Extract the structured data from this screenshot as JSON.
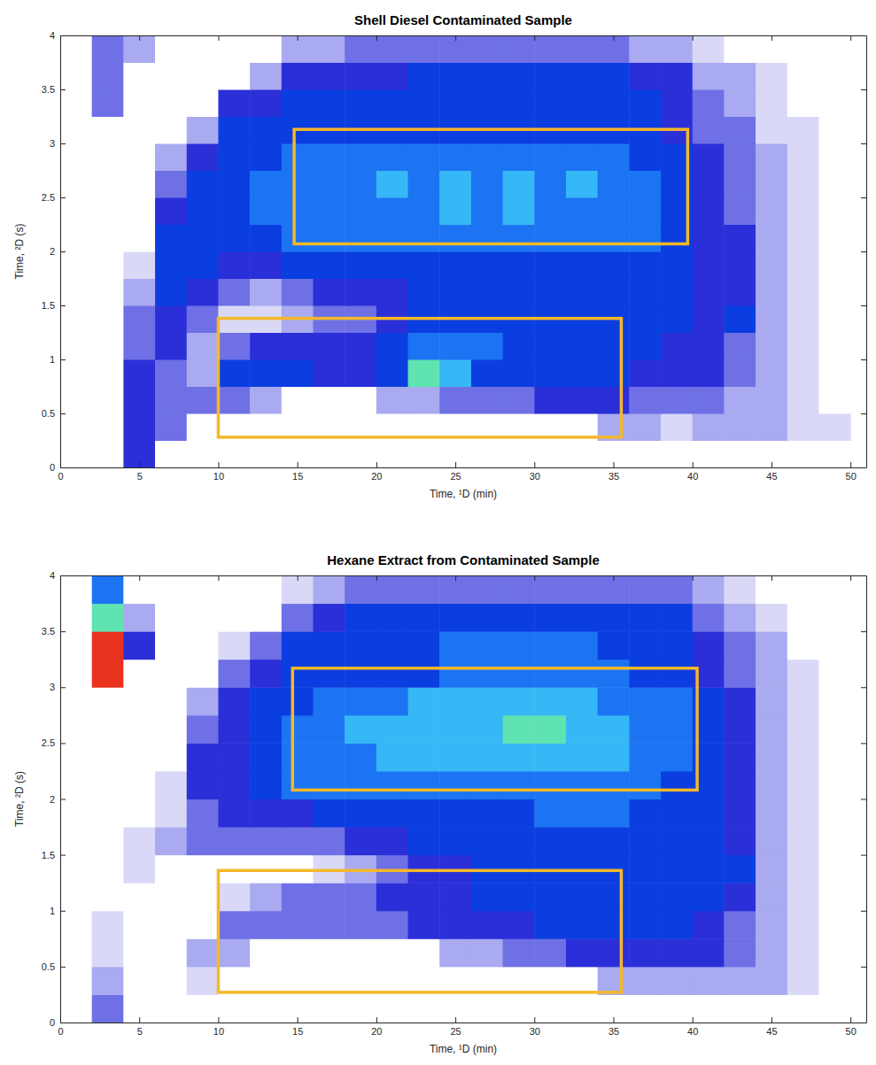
{
  "chart_data": [
    {
      "type": "heatmap",
      "title": "Shell Diesel Contaminated Sample",
      "x_label": "Time, ¹D (min)",
      "y_label": "Time, ²D (s)",
      "xlim": [
        0,
        51
      ],
      "ylim": [
        0,
        4
      ],
      "xticks": [
        0,
        5,
        10,
        15,
        20,
        25,
        30,
        35,
        40,
        45,
        50
      ],
      "yticks": [
        0,
        0.5,
        1,
        1.5,
        2,
        2.5,
        3,
        3.5,
        4
      ],
      "x_edges": [
        0,
        2,
        4,
        6,
        8,
        10,
        12,
        14,
        16,
        18,
        20,
        22,
        24,
        26,
        28,
        30,
        32,
        34,
        36,
        38,
        40,
        42,
        44,
        46,
        48,
        50
      ],
      "y_edges": [
        0,
        0.25,
        0.5,
        0.75,
        1,
        1.25,
        1.5,
        1.75,
        2,
        2.25,
        2.5,
        2.75,
        3,
        3.25,
        3.5,
        3.75,
        4
      ],
      "z": [
        [
          0,
          0,
          4,
          0,
          0,
          0,
          0,
          0,
          0,
          0,
          0,
          0,
          0,
          0,
          0,
          0,
          0,
          0,
          0,
          0,
          0,
          0,
          0,
          0,
          0
        ],
        [
          0,
          0,
          4,
          3,
          0,
          0,
          0,
          0,
          0,
          0,
          0,
          0,
          0,
          0,
          0,
          0,
          0,
          2,
          2,
          1,
          2,
          2,
          2,
          1,
          1
        ],
        [
          0,
          0,
          4,
          3,
          3,
          3,
          2,
          0,
          0,
          0,
          2,
          2,
          3,
          3,
          3,
          4,
          4,
          4,
          3,
          3,
          3,
          2,
          2,
          1,
          0
        ],
        [
          0,
          0,
          4,
          3,
          2,
          5,
          5,
          5,
          4,
          4,
          5,
          8,
          7,
          5,
          5,
          5,
          5,
          5,
          4,
          4,
          4,
          3,
          2,
          1,
          0
        ],
        [
          0,
          0,
          3,
          4,
          2,
          3,
          4,
          4,
          4,
          4,
          5,
          6,
          6,
          6,
          5,
          5,
          5,
          5,
          5,
          4,
          4,
          3,
          2,
          1,
          0
        ],
        [
          0,
          0,
          3,
          4,
          3,
          1,
          1,
          2,
          3,
          3,
          4,
          5,
          5,
          5,
          5,
          5,
          5,
          5,
          5,
          5,
          4,
          5,
          2,
          1,
          0
        ],
        [
          0,
          0,
          2,
          5,
          4,
          3,
          2,
          3,
          4,
          4,
          4,
          5,
          5,
          5,
          5,
          5,
          5,
          5,
          5,
          5,
          4,
          4,
          2,
          1,
          0
        ],
        [
          0,
          0,
          1,
          5,
          5,
          4,
          4,
          5,
          5,
          5,
          5,
          5,
          5,
          5,
          5,
          5,
          5,
          5,
          5,
          5,
          4,
          4,
          2,
          1,
          0
        ],
        [
          0,
          0,
          0,
          5,
          5,
          5,
          5,
          6,
          6,
          6,
          6,
          6,
          6,
          6,
          6,
          6,
          6,
          6,
          6,
          5,
          4,
          4,
          2,
          1,
          0
        ],
        [
          0,
          0,
          0,
          4,
          5,
          5,
          6,
          6,
          6,
          6,
          6,
          6,
          7,
          6,
          7,
          6,
          6,
          6,
          6,
          5,
          4,
          3,
          2,
          1,
          0
        ],
        [
          0,
          0,
          0,
          3,
          5,
          5,
          6,
          6,
          6,
          6,
          7,
          6,
          7,
          6,
          7,
          6,
          7,
          6,
          6,
          5,
          4,
          3,
          2,
          1,
          0
        ],
        [
          0,
          0,
          0,
          2,
          4,
          5,
          5,
          6,
          6,
          6,
          6,
          6,
          6,
          6,
          6,
          6,
          6,
          6,
          5,
          5,
          4,
          3,
          2,
          1,
          0
        ],
        [
          0,
          0,
          0,
          0,
          2,
          5,
          5,
          5,
          5,
          5,
          5,
          5,
          5,
          5,
          5,
          5,
          5,
          5,
          5,
          4,
          3,
          3,
          1,
          1,
          0
        ],
        [
          0,
          3,
          0,
          0,
          0,
          4,
          4,
          5,
          5,
          5,
          5,
          5,
          5,
          5,
          5,
          5,
          5,
          5,
          5,
          4,
          3,
          2,
          1,
          0,
          0
        ],
        [
          0,
          3,
          0,
          0,
          0,
          0,
          2,
          4,
          4,
          4,
          4,
          5,
          5,
          5,
          5,
          5,
          5,
          5,
          4,
          4,
          2,
          2,
          1,
          0,
          0
        ],
        [
          0,
          3,
          2,
          0,
          0,
          0,
          0,
          2,
          2,
          3,
          3,
          3,
          3,
          3,
          3,
          3,
          3,
          3,
          2,
          2,
          1,
          0,
          0,
          0,
          0
        ]
      ],
      "shapes": [
        {
          "type": "rect",
          "x": [
            14.8,
            39.7
          ],
          "y": [
            2.07,
            3.13
          ],
          "color": "#f5b829"
        },
        {
          "type": "rect",
          "x": [
            10,
            35.5
          ],
          "y": [
            0.28,
            1.38
          ],
          "color": "#f5b829"
        }
      ]
    },
    {
      "type": "heatmap",
      "title": "Hexane Extract from Contaminated Sample",
      "x_label": "Time, ¹D (min)",
      "y_label": "Time, ²D (s)",
      "xlim": [
        0,
        51
      ],
      "ylim": [
        0,
        4
      ],
      "xticks": [
        0,
        5,
        10,
        15,
        20,
        25,
        30,
        35,
        40,
        45,
        50
      ],
      "yticks": [
        0,
        0.5,
        1,
        1.5,
        2,
        2.5,
        3,
        3.5,
        4
      ],
      "x_edges": [
        0,
        2,
        4,
        6,
        8,
        10,
        12,
        14,
        16,
        18,
        20,
        22,
        24,
        26,
        28,
        30,
        32,
        34,
        36,
        38,
        40,
        42,
        44,
        46,
        48,
        50
      ],
      "y_edges": [
        0,
        0.25,
        0.5,
        0.75,
        1,
        1.25,
        1.5,
        1.75,
        2,
        2.25,
        2.5,
        2.75,
        3,
        3.25,
        3.5,
        3.75,
        4
      ],
      "z": [
        [
          0,
          3,
          0,
          0,
          0,
          0,
          0,
          0,
          0,
          0,
          0,
          0,
          0,
          0,
          0,
          0,
          0,
          0,
          0,
          0,
          0,
          0,
          0,
          0,
          0
        ],
        [
          0,
          2,
          0,
          0,
          1,
          0,
          0,
          0,
          0,
          0,
          0,
          0,
          0,
          0,
          0,
          0,
          0,
          2,
          2,
          2,
          2,
          2,
          2,
          1,
          0
        ],
        [
          0,
          1,
          0,
          0,
          2,
          2,
          0,
          0,
          0,
          0,
          0,
          0,
          2,
          2,
          3,
          3,
          4,
          4,
          4,
          4,
          4,
          3,
          2,
          1,
          0
        ],
        [
          0,
          1,
          0,
          0,
          0,
          3,
          3,
          3,
          3,
          3,
          3,
          4,
          4,
          4,
          4,
          5,
          5,
          5,
          5,
          5,
          4,
          3,
          2,
          1,
          0
        ],
        [
          0,
          0,
          0,
          0,
          0,
          1,
          2,
          3,
          3,
          3,
          4,
          4,
          4,
          5,
          5,
          5,
          5,
          5,
          5,
          5,
          5,
          4,
          2,
          1,
          0
        ],
        [
          0,
          0,
          1,
          0,
          0,
          0,
          0,
          0,
          1,
          2,
          3,
          4,
          4,
          5,
          5,
          5,
          5,
          5,
          5,
          5,
          5,
          5,
          2,
          1,
          0
        ],
        [
          0,
          0,
          1,
          2,
          3,
          3,
          3,
          3,
          3,
          4,
          4,
          5,
          5,
          5,
          5,
          5,
          5,
          5,
          5,
          5,
          5,
          4,
          2,
          1,
          0
        ],
        [
          0,
          0,
          0,
          1,
          3,
          4,
          4,
          4,
          5,
          5,
          5,
          5,
          5,
          5,
          5,
          6,
          6,
          6,
          5,
          5,
          5,
          4,
          2,
          1,
          0
        ],
        [
          0,
          0,
          0,
          1,
          4,
          4,
          5,
          6,
          6,
          6,
          6,
          6,
          6,
          6,
          6,
          6,
          6,
          6,
          6,
          5,
          5,
          4,
          2,
          1,
          0
        ],
        [
          0,
          0,
          0,
          0,
          4,
          4,
          5,
          6,
          6,
          6,
          7,
          7,
          7,
          7,
          7,
          7,
          7,
          7,
          6,
          6,
          5,
          4,
          2,
          1,
          0
        ],
        [
          0,
          0,
          0,
          0,
          3,
          4,
          5,
          6,
          6,
          7,
          7,
          7,
          7,
          7,
          8,
          8,
          7,
          7,
          6,
          6,
          5,
          4,
          2,
          1,
          0
        ],
        [
          0,
          0,
          0,
          0,
          2,
          4,
          5,
          5,
          6,
          6,
          6,
          7,
          7,
          7,
          7,
          7,
          7,
          6,
          6,
          6,
          5,
          4,
          2,
          1,
          0
        ],
        [
          0,
          9,
          0,
          0,
          0,
          3,
          4,
          5,
          5,
          5,
          5,
          5,
          6,
          6,
          6,
          6,
          6,
          6,
          5,
          5,
          4,
          3,
          2,
          1,
          0
        ],
        [
          0,
          9,
          4,
          0,
          0,
          1,
          3,
          5,
          5,
          5,
          5,
          5,
          6,
          6,
          6,
          6,
          6,
          5,
          5,
          5,
          4,
          3,
          2,
          0,
          0
        ],
        [
          0,
          8,
          2,
          0,
          0,
          0,
          0,
          3,
          4,
          5,
          5,
          5,
          5,
          5,
          5,
          5,
          5,
          5,
          5,
          5,
          3,
          2,
          1,
          0,
          0
        ],
        [
          0,
          6,
          0,
          0,
          0,
          0,
          0,
          1,
          2,
          3,
          3,
          3,
          3,
          3,
          3,
          3,
          3,
          3,
          3,
          3,
          2,
          1,
          0,
          0,
          0
        ]
      ],
      "shapes": [
        {
          "type": "rect",
          "x": [
            14.7,
            40.3
          ],
          "y": [
            2.08,
            3.17
          ],
          "color": "#f5b829"
        },
        {
          "type": "rect",
          "x": [
            10,
            35.5
          ],
          "y": [
            0.27,
            1.36
          ],
          "color": "#f5b829"
        }
      ]
    }
  ]
}
